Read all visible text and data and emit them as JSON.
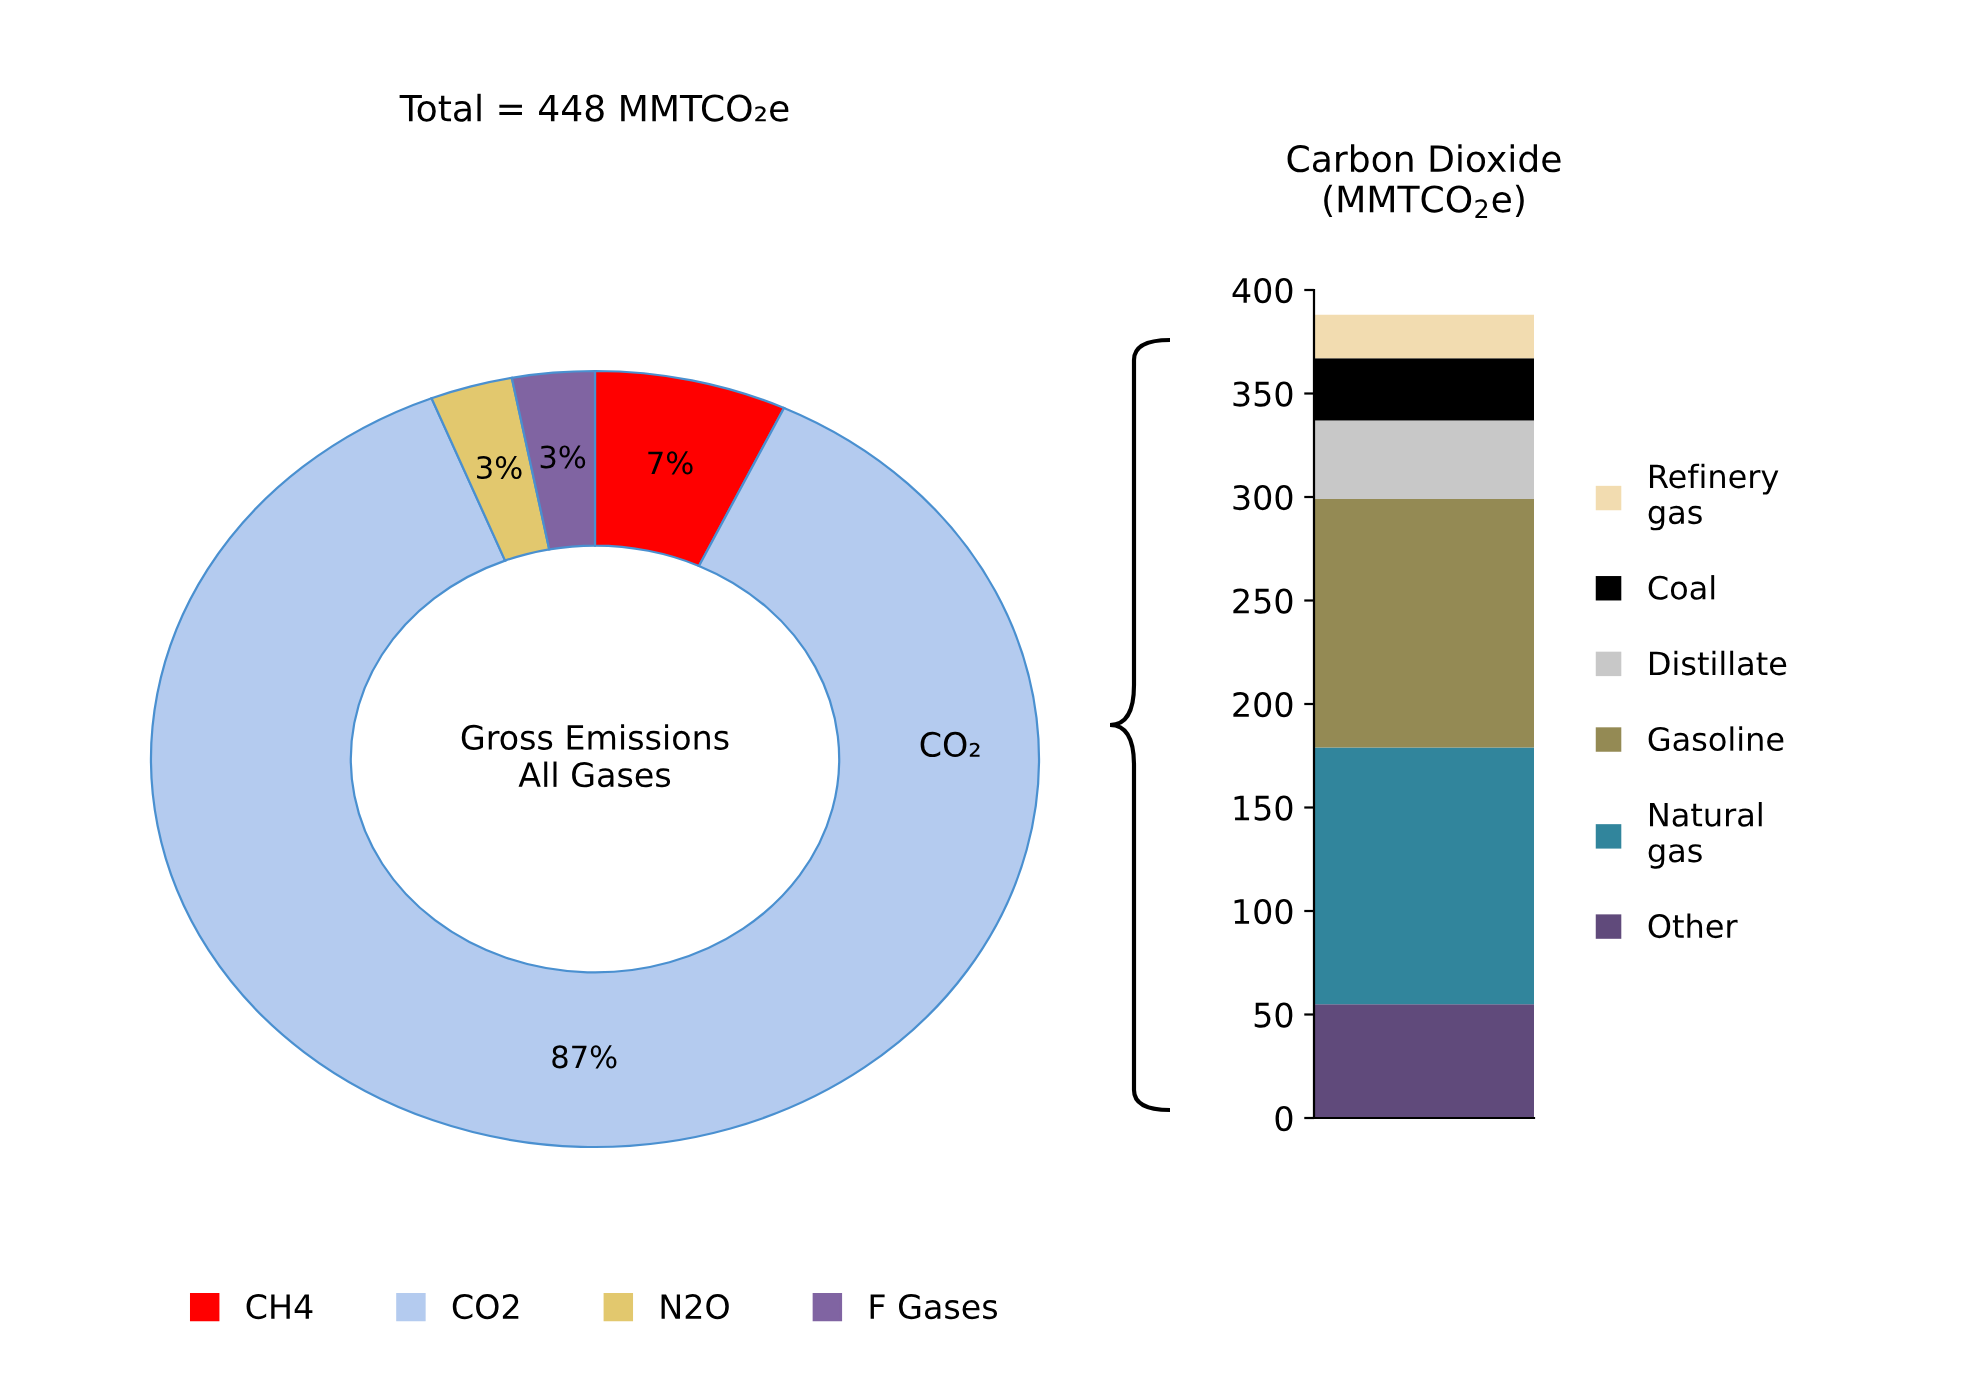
{
  "chart_data": [
    {
      "type": "donut",
      "title": "Total = 448 MMTCO₂e",
      "categories": [
        "CH4",
        "CO2",
        "N2O",
        "F Gases"
      ],
      "values": [
        7,
        87,
        3,
        3
      ],
      "colors": [
        "#ff0000",
        "#b4cbef",
        "#e2c86e",
        "#8064a2"
      ],
      "value_labels": [
        "7%",
        "87%",
        "3%",
        "3%"
      ],
      "annotations": [
        "Gross Emissions\nAll Gases",
        "CO₂"
      ],
      "legend": "bottom"
    },
    {
      "type": "bar",
      "stacked": true,
      "title": "Carbon Dioxide\n(MMTCO$_{2}$e)",
      "categories": [
        null
      ],
      "series": [
        {
          "name": "Other",
          "color": "#604a7b",
          "values": [
            55
          ]
        },
        {
          "name": "Natural\ngas",
          "color": "#31859c",
          "values": [
            124
          ]
        },
        {
          "name": "Gasoline",
          "color": "#948a54",
          "values": [
            120
          ]
        },
        {
          "name": "Distillate",
          "color": "#c8c8c8",
          "values": [
            38
          ]
        },
        {
          "name": "Coal",
          "color": "#000000",
          "values": [
            30
          ]
        },
        {
          "name": "Refinery\ngas",
          "color": "#f2dcb0",
          "values": [
            21
          ]
        }
      ],
      "ylim": [
        0,
        400
      ],
      "yticks": [
        0,
        50,
        100,
        150,
        200,
        250,
        300,
        350,
        400
      ],
      "grid": false,
      "legend": "right"
    }
  ]
}
